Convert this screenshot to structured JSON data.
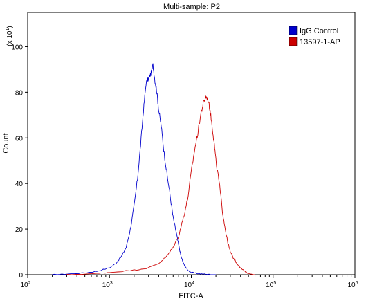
{
  "chart_data": {
    "type": "line",
    "title": "Multi-sample: P2",
    "xlabel": "FITC-A",
    "ylabel": "Count",
    "y_multiplier": "(x 10",
    "y_multiplier_exp": "1",
    "x_scale": "log",
    "xlim": [
      100,
      1000000
    ],
    "ylim": [
      0,
      115
    ],
    "x_ticks": [
      {
        "value": 100,
        "base": "10",
        "exp": "2"
      },
      {
        "value": 1000,
        "base": "10",
        "exp": "3"
      },
      {
        "value": 10000,
        "base": "10",
        "exp": "4"
      },
      {
        "value": 100000,
        "base": "10",
        "exp": "5"
      },
      {
        "value": 1000000,
        "base": "10",
        "exp": "6"
      }
    ],
    "y_ticks": [
      0,
      20,
      40,
      60,
      80,
      100
    ],
    "legend_position": "top-right",
    "series": [
      {
        "name": "IgG Control",
        "color": "#0000cc",
        "x": [
          200,
          300,
          500,
          700,
          1000,
          1200,
          1400,
          1600,
          1800,
          2000,
          2200,
          2400,
          2600,
          2800,
          3000,
          3200,
          3400,
          3600,
          3800,
          4000,
          4300,
          4600,
          5000,
          5500,
          6000,
          6500,
          7000,
          7500,
          8000,
          9000,
          10000,
          12000,
          15000,
          20000
        ],
        "y": [
          0,
          0.3,
          0.8,
          1.5,
          3,
          5,
          8,
          12,
          20,
          30,
          42,
          57,
          72,
          84,
          86,
          88,
          92,
          85,
          80,
          72,
          65,
          55,
          45,
          35,
          25,
          19,
          13,
          8,
          5,
          2,
          1,
          0.5,
          0.2,
          0
        ]
      },
      {
        "name": "13597-1-AP",
        "color": "#cc0000",
        "x": [
          300,
          700,
          1000,
          2000,
          3000,
          4000,
          5000,
          6000,
          7000,
          8000,
          9000,
          10000,
          11000,
          12000,
          13000,
          14000,
          15000,
          16000,
          17000,
          18000,
          19000,
          20000,
          22000,
          24000,
          26000,
          28000,
          30000,
          33000,
          36000,
          40000,
          45000,
          50000,
          60000
        ],
        "y": [
          0,
          0.5,
          1,
          2,
          3,
          5,
          8,
          12,
          17,
          25,
          33,
          45,
          55,
          62,
          70,
          75,
          78,
          77,
          72,
          65,
          58,
          50,
          40,
          28,
          20,
          14,
          10,
          7,
          5,
          3,
          1.5,
          0.5,
          0
        ]
      }
    ]
  }
}
